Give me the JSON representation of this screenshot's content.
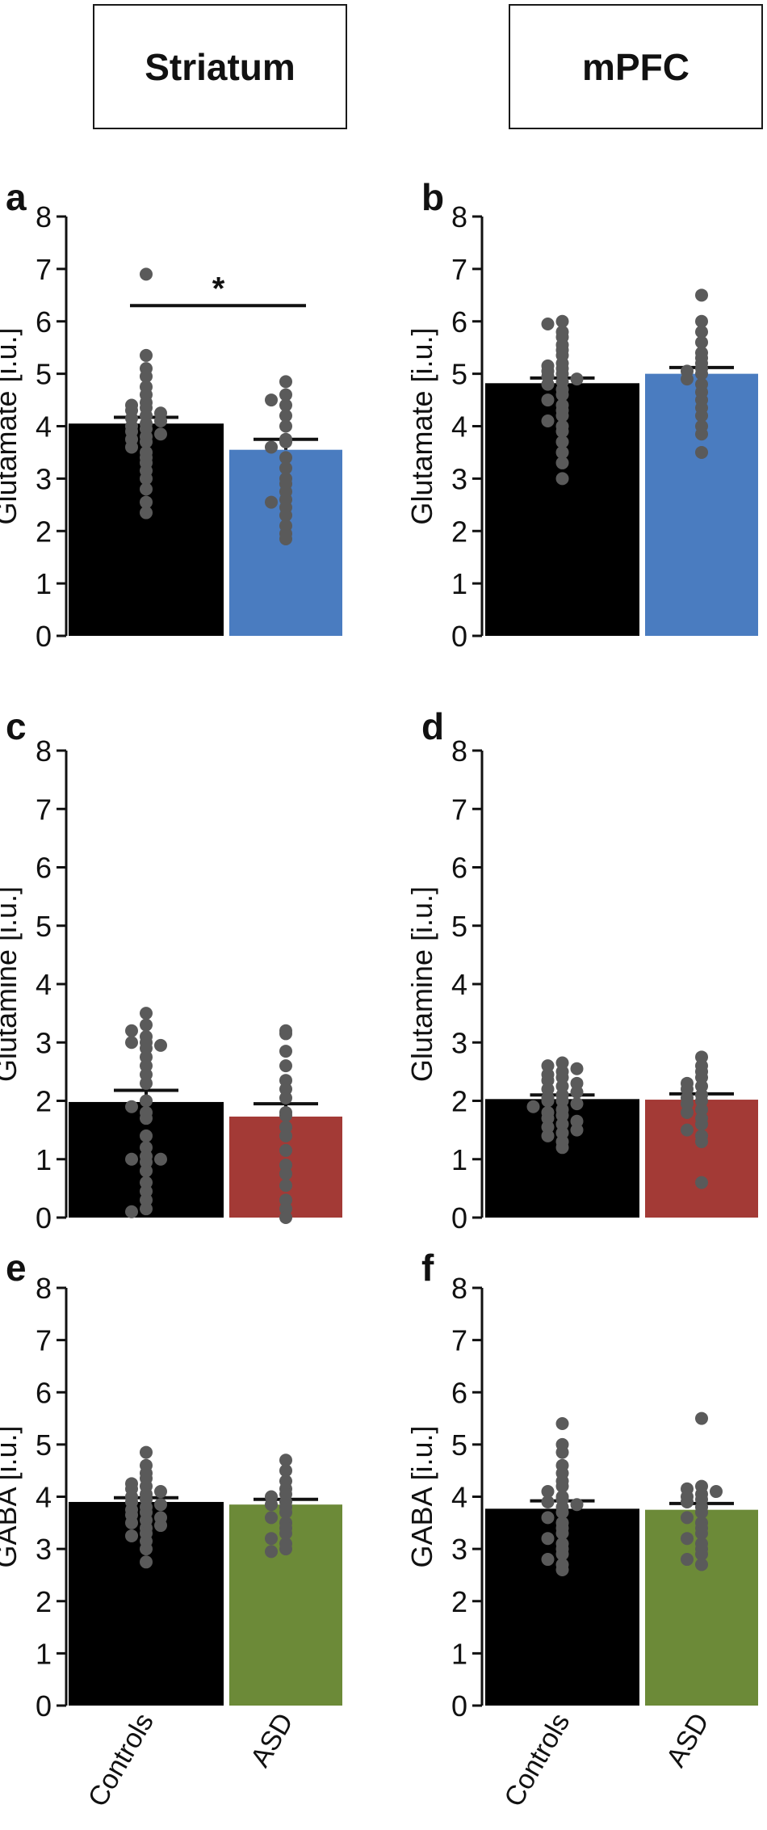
{
  "headers": {
    "left": "Striatum",
    "right": "mPFC"
  },
  "x_categories": [
    "Controls",
    "ASD"
  ],
  "colors": {
    "controls": "#000000",
    "glutamate": "#4a7cc0",
    "glutamine": "#a33a36",
    "gaba": "#6c8a38",
    "dots": "#5a5a5a"
  },
  "chart_data": [
    {
      "panel": "a",
      "type": "bar",
      "region": "Striatum",
      "ylabel": "Glutamate [i.u.]",
      "ylim": [
        0,
        8
      ],
      "yticks": [
        "0",
        "1",
        "2",
        "3",
        "4",
        "5",
        "6",
        "7",
        "8"
      ],
      "categories": [
        "Controls",
        "ASD"
      ],
      "values": [
        4.05,
        3.55
      ],
      "sem": [
        0.12,
        0.2
      ],
      "asd_color": "glutamate",
      "significance": {
        "label": "*",
        "y": 6.3
      },
      "points": [
        [
          6.9,
          5.35,
          5.1,
          4.95,
          4.75,
          4.6,
          4.45,
          4.4,
          4.35,
          4.3,
          4.25,
          4.2,
          4.15,
          4.1,
          4.05,
          4.0,
          3.95,
          3.9,
          3.85,
          3.8,
          3.75,
          3.7,
          3.6,
          3.5,
          3.4,
          3.3,
          3.15,
          3.0,
          2.8,
          2.55,
          2.35
        ],
        [
          4.85,
          4.6,
          4.5,
          4.4,
          4.2,
          4.0,
          3.75,
          3.7,
          3.6,
          3.4,
          3.2,
          3.0,
          2.9,
          2.75,
          2.6,
          2.55,
          2.45,
          2.3,
          2.1,
          1.95,
          1.85
        ]
      ]
    },
    {
      "panel": "b",
      "type": "bar",
      "region": "mPFC",
      "ylabel": "Glutamate [i.u.]",
      "ylim": [
        0,
        8
      ],
      "yticks": [
        "0",
        "1",
        "2",
        "3",
        "4",
        "5",
        "6",
        "7",
        "8"
      ],
      "categories": [
        "Controls",
        "ASD"
      ],
      "values": [
        4.82,
        5.0
      ],
      "sem": [
        0.1,
        0.12
      ],
      "asd_color": "glutamate",
      "significance": null,
      "points": [
        [
          6.0,
          5.95,
          5.8,
          5.7,
          5.55,
          5.45,
          5.35,
          5.2,
          5.15,
          5.1,
          5.05,
          5.0,
          4.95,
          4.9,
          4.85,
          4.8,
          4.7,
          4.6,
          4.5,
          4.4,
          4.3,
          4.2,
          4.1,
          4.0,
          3.9,
          3.7,
          3.5,
          3.3,
          3.0
        ],
        [
          6.5,
          6.0,
          5.8,
          5.6,
          5.4,
          5.3,
          5.2,
          5.1,
          5.05,
          5.0,
          4.9,
          4.8,
          4.65,
          4.5,
          4.35,
          4.2,
          4.0,
          3.85,
          3.5
        ]
      ]
    },
    {
      "panel": "c",
      "type": "bar",
      "region": "Striatum",
      "ylabel": "Glutamine [i.u.]",
      "ylim": [
        0,
        8
      ],
      "yticks": [
        "0",
        "1",
        "2",
        "3",
        "4",
        "5",
        "6",
        "7",
        "8"
      ],
      "categories": [
        "Controls",
        "ASD"
      ],
      "values": [
        1.98,
        1.73
      ],
      "sem": [
        0.2,
        0.22
      ],
      "asd_color": "glutamine",
      "significance": null,
      "points": [
        [
          3.5,
          3.3,
          3.2,
          3.1,
          3.0,
          3.0,
          2.95,
          2.9,
          2.75,
          2.6,
          2.45,
          2.3,
          2.0,
          1.9,
          1.8,
          1.7,
          1.4,
          1.2,
          1.05,
          1.0,
          1.0,
          0.95,
          0.8,
          0.6,
          0.45,
          0.3,
          0.15,
          0.1
        ],
        [
          3.2,
          3.15,
          2.85,
          2.6,
          2.35,
          2.2,
          2.05,
          1.8,
          1.75,
          1.55,
          1.4,
          1.15,
          0.9,
          0.75,
          0.55,
          0.3,
          0.15,
          0.0
        ]
      ]
    },
    {
      "panel": "d",
      "type": "bar",
      "region": "mPFC",
      "ylabel": "Glutamine [i.u.]",
      "ylim": [
        0,
        8
      ],
      "yticks": [
        "0",
        "1",
        "2",
        "3",
        "4",
        "5",
        "6",
        "7",
        "8"
      ],
      "categories": [
        "Controls",
        "ASD"
      ],
      "values": [
        2.03,
        2.02
      ],
      "sem": [
        0.07,
        0.1
      ],
      "asd_color": "glutamine",
      "significance": null,
      "points": [
        [
          2.65,
          2.6,
          2.55,
          2.5,
          2.45,
          2.4,
          2.35,
          2.3,
          2.25,
          2.2,
          2.15,
          2.1,
          2.05,
          2.0,
          2.0,
          1.95,
          1.9,
          1.85,
          1.8,
          1.75,
          1.7,
          1.65,
          1.6,
          1.55,
          1.5,
          1.45,
          1.4,
          1.3,
          1.2
        ],
        [
          2.75,
          2.6,
          2.5,
          2.4,
          2.3,
          2.25,
          2.2,
          2.1,
          2.05,
          2.0,
          1.95,
          1.85,
          1.8,
          1.7,
          1.6,
          1.5,
          1.4,
          1.3,
          0.6
        ]
      ]
    },
    {
      "panel": "e",
      "type": "bar",
      "region": "Striatum",
      "ylabel": "GABA [i.u.]",
      "ylim": [
        0,
        8
      ],
      "yticks": [
        "0",
        "1",
        "2",
        "3",
        "4",
        "5",
        "6",
        "7",
        "8"
      ],
      "categories": [
        "Controls",
        "ASD"
      ],
      "values": [
        3.9,
        3.85
      ],
      "sem": [
        0.08,
        0.1
      ],
      "asd_color": "gaba",
      "significance": null,
      "points": [
        [
          4.85,
          4.6,
          4.45,
          4.35,
          4.25,
          4.2,
          4.15,
          4.1,
          4.05,
          4.0,
          3.95,
          3.9,
          3.85,
          3.8,
          3.75,
          3.7,
          3.65,
          3.6,
          3.55,
          3.5,
          3.45,
          3.4,
          3.3,
          3.25,
          3.15,
          3.0,
          2.75
        ],
        [
          4.7,
          4.5,
          4.3,
          4.15,
          4.05,
          4.0,
          3.9,
          3.85,
          3.8,
          3.7,
          3.6,
          3.5,
          3.4,
          3.3,
          3.2,
          3.1,
          3.0,
          2.95
        ]
      ]
    },
    {
      "panel": "f",
      "type": "bar",
      "region": "mPFC",
      "ylabel": "GABA [i.u.]",
      "ylim": [
        0,
        8
      ],
      "yticks": [
        "0",
        "1",
        "2",
        "3",
        "4",
        "5",
        "6",
        "7",
        "8"
      ],
      "categories": [
        "Controls",
        "ASD"
      ],
      "values": [
        3.77,
        3.75
      ],
      "sem": [
        0.15,
        0.12
      ],
      "asd_color": "gaba",
      "significance": null,
      "points": [
        [
          5.4,
          5.0,
          4.85,
          4.6,
          4.45,
          4.3,
          4.2,
          4.1,
          4.0,
          3.95,
          3.9,
          3.85,
          3.8,
          3.7,
          3.6,
          3.5,
          3.4,
          3.3,
          3.2,
          3.1,
          3.0,
          2.9,
          2.8,
          2.7,
          2.6
        ],
        [
          5.5,
          4.2,
          4.15,
          4.1,
          4.05,
          4.0,
          3.95,
          3.9,
          3.8,
          3.7,
          3.6,
          3.5,
          3.4,
          3.3,
          3.2,
          3.1,
          3.0,
          2.9,
          2.8,
          2.7
        ]
      ]
    }
  ]
}
